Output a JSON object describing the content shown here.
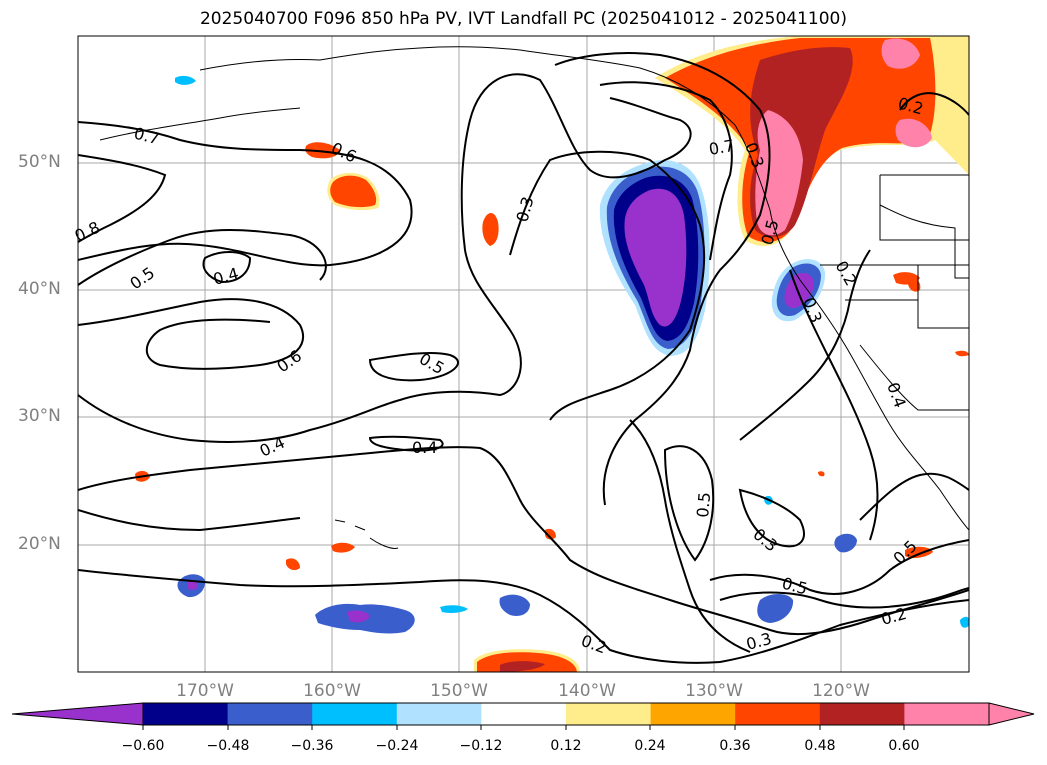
{
  "title": "2025040700 F096 850 hPa PV, IVT Landfall PC (2025041012 - 2025041100)",
  "lat_labels": [
    "50°N",
    "40°N",
    "30°N",
    "20°N"
  ],
  "lon_labels": [
    "170°W",
    "160°W",
    "150°W",
    "140°W",
    "130°W",
    "120°W"
  ],
  "contour_labels": [
    "0.7",
    "0.6",
    "0.8",
    "0.5",
    "0.4",
    "0.6",
    "0.5",
    "0.4",
    "0.4",
    "0.3",
    "0.7",
    "0.2",
    "0.5",
    "0.3",
    "0.5",
    "0.3",
    "0.5",
    "0.3",
    "0.2",
    "0.5",
    "0.2",
    "0.2",
    "0.4",
    "0.3"
  ],
  "colorbar": {
    "ticks": [
      "−0.60",
      "−0.48",
      "−0.36",
      "−0.24",
      "−0.12",
      "0.12",
      "0.24",
      "0.36",
      "0.48",
      "0.60"
    ],
    "colors": [
      "#9932cc",
      "#00008b",
      "#3a5fcd",
      "#00bfff",
      "#b0e2ff",
      "#ffffff",
      "#ffec8b",
      "#ffa500",
      "#ff4500",
      "#b22222",
      "#ff82ab",
      "#ff82ab"
    ]
  },
  "shading_colors": {
    "neg_outer": "#b0e2ff",
    "neg_2": "#00bfff",
    "neg_3": "#3a5fcd",
    "neg_4": "#00008b",
    "neg_core": "#9932cc",
    "pos_outer": "#ffec8b",
    "pos_2": "#ffa500",
    "pos_3": "#ff4500",
    "pos_4": "#b22222",
    "pos_core": "#ff82ab"
  }
}
